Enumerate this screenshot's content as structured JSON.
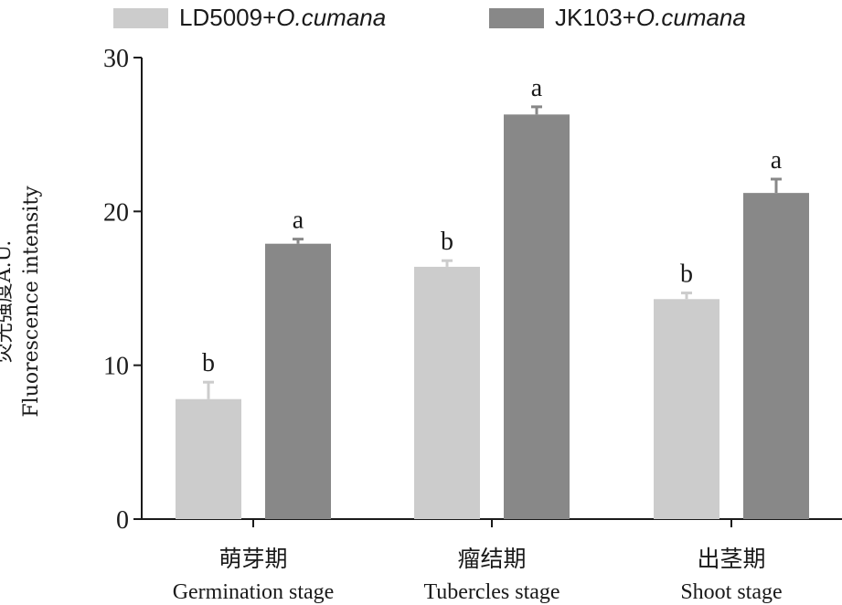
{
  "legend": {
    "series1": {
      "prefix": "LD5009+",
      "italic": "O.cumana",
      "color": "#cccccc"
    },
    "series2": {
      "prefix": "JK103+",
      "italic": "O.cumana",
      "color": "#888888"
    }
  },
  "ylabel": {
    "line1": "荧光强度A.U.",
    "line2": "Fluorescence intensity"
  },
  "chart_data": {
    "type": "bar",
    "categories": [
      {
        "zh": "萌芽期",
        "en": "Germination stage"
      },
      {
        "zh": "瘤结期",
        "en": "Tubercles stage"
      },
      {
        "zh": "出茎期",
        "en": "Shoot stage"
      }
    ],
    "series": [
      {
        "name": "LD5009+O.cumana",
        "color": "#cccccc",
        "values": [
          7.8,
          16.4,
          14.3
        ],
        "errors": [
          1.1,
          0.4,
          0.4
        ],
        "labels": [
          "b",
          "b",
          "b"
        ]
      },
      {
        "name": "JK103+O.cumana",
        "color": "#888888",
        "values": [
          17.9,
          26.3,
          21.2
        ],
        "errors": [
          0.3,
          0.5,
          0.9
        ],
        "labels": [
          "a",
          "a",
          "a"
        ]
      }
    ],
    "ylim": [
      0,
      30
    ],
    "yticks": [
      0,
      10,
      20,
      30
    ],
    "grid": false,
    "legend_position": "top"
  }
}
